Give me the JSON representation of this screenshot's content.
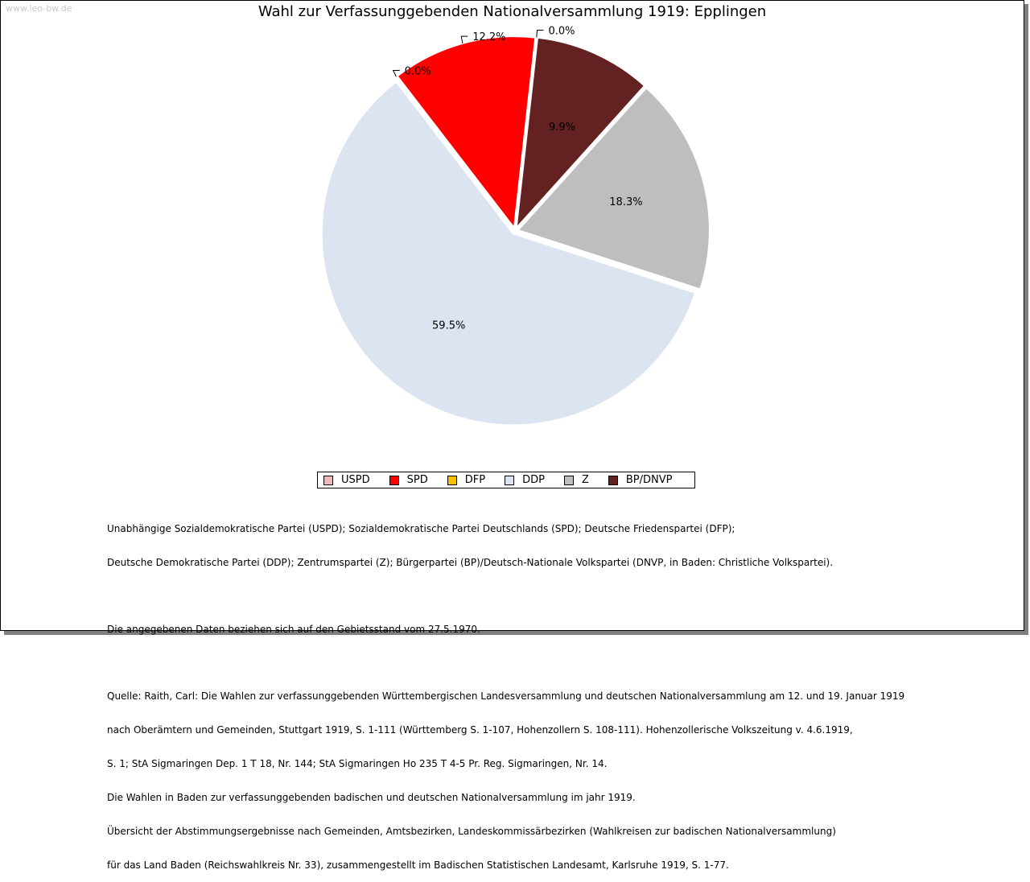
{
  "watermark": "www.leo-bw.de",
  "chart_data": {
    "type": "pie",
    "title": "Wahl zur Verfassunggebenden Nationalversammlung 1919: Epplingen",
    "slices": [
      {
        "name": "USPD",
        "value": 0.0,
        "label": "0.0%",
        "color": "#f0b8b8"
      },
      {
        "name": "SPD",
        "value": 12.2,
        "label": "12.2%",
        "color": "#ff0000"
      },
      {
        "name": "DFP",
        "value": 0.0,
        "label": "0.0%",
        "color": "#f8c000"
      },
      {
        "name": "BP/DNVP",
        "value": 9.9,
        "label": "9.9%",
        "color": "#632121"
      },
      {
        "name": "Z",
        "value": 18.3,
        "label": "18.3%",
        "color": "#bebebe"
      },
      {
        "name": "DDP",
        "value": 59.5,
        "label": "59.5%",
        "color": "#dbe4f0"
      }
    ],
    "legend": [
      "USPD",
      "SPD",
      "DFP",
      "DDP",
      "Z",
      "BP/DNVP"
    ],
    "legend_position": "bottom"
  },
  "notes": {
    "parties_line1": "Unabhängige Sozialdemokratische Partei (USPD); Sozialdemokratische Partei Deutschlands (SPD); Deutsche Friedenspartei (DFP);",
    "parties_line2": "Deutsche Demokratische Partei (DDP); Zentrumspartei (Z); Bürgerpartei (BP)/Deutsch-Nationale Volkspartei (DNVP, in Baden: Christliche Volkspartei).",
    "territory": "Die angegebenen Daten beziehen sich auf den Gebietsstand vom 27.5.1970.",
    "source_line1": "Quelle: Raith, Carl: Die Wahlen zur verfassunggebenden Württembergischen Landesversammlung und deutschen Nationalversammlung am 12. und 19. Januar 1919",
    "source_line2": "nach Oberämtern und Gemeinden, Stuttgart 1919, S. 1-111 (Württemberg S. 1-107, Hohenzollern S. 108-111). Hohenzollerische Volkszeitung v. 4.6.1919,",
    "source_line3": "S. 1; StA Sigmaringen Dep. 1 T 18, Nr. 144; StA Sigmaringen Ho 235 T 4-5 Pr. Reg. Sigmaringen, Nr. 14.",
    "source_line4": "Die Wahlen in Baden zur verfassunggebenden badischen und deutschen Nationalversammlung im jahr 1919.",
    "source_line5": "Übersicht der Abstimmungsergebnisse nach Gemeinden, Amtsbezirken, Landeskommissärbezirken (Wahlkreisen zur badischen Nationalversammlung)",
    "source_line6": "für das Land Baden (Reichswahlkreis Nr. 33), zusammengestellt im Badischen Statistischen Landesamt, Karlsruhe 1919, S. 1-77."
  }
}
